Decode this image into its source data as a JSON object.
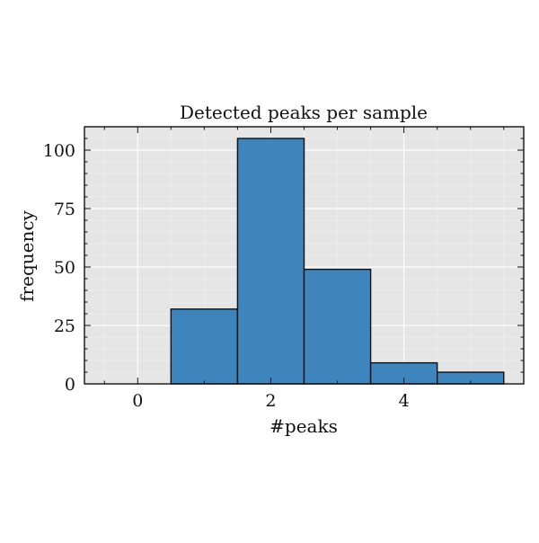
{
  "chart_data": {
    "type": "bar",
    "title": "Detected peaks per sample",
    "xlabel": "#peaks",
    "ylabel": "frequency",
    "categories": [
      0,
      1,
      2,
      3,
      4,
      5
    ],
    "values": [
      0,
      32,
      105,
      49,
      9,
      5
    ],
    "xlim": [
      -0.8,
      5.8
    ],
    "ylim": [
      0,
      110
    ],
    "x_ticks": [
      0,
      2,
      4
    ],
    "y_ticks": [
      0,
      25,
      50,
      75,
      100
    ],
    "grid": true,
    "legend": "none",
    "colors": {
      "bar_fill": "#3d85bc",
      "bar_edge": "#111111",
      "plot_background": "#e5e5e5",
      "grid": "#ffffff"
    }
  }
}
